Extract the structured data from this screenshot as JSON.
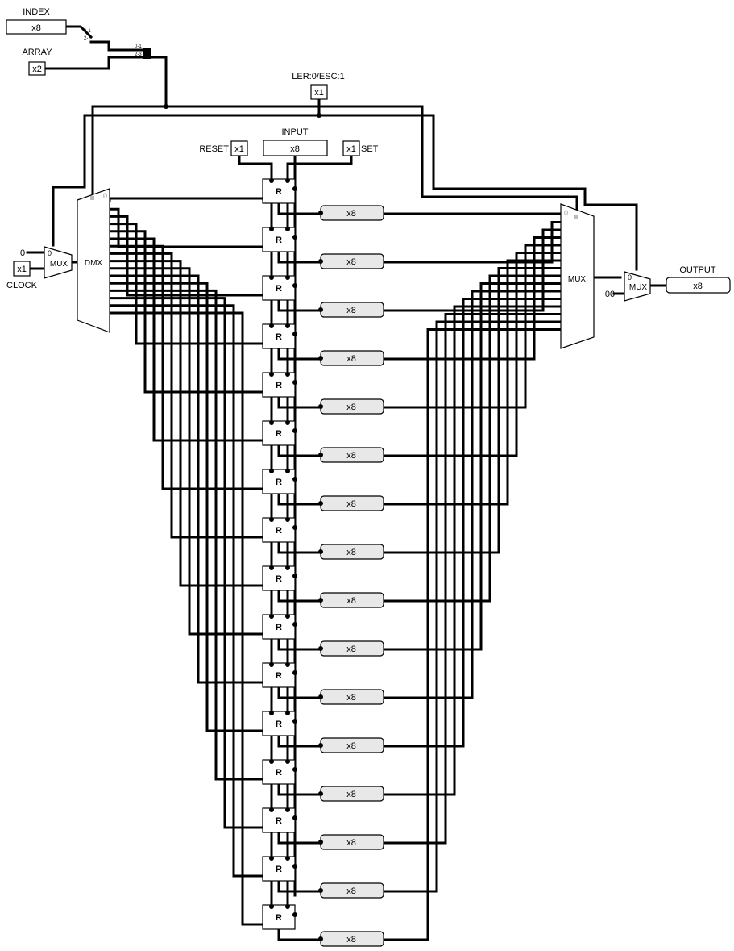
{
  "labels": {
    "index": "INDEX",
    "array": "ARRAY",
    "mode": "LER:0/ESC:1",
    "input": "INPUT",
    "reset": "RESET",
    "set": "SET",
    "clock": "CLOCK",
    "output": "OUTPUT"
  },
  "pins": {
    "index_value": "x8",
    "array_value": "x2",
    "mode_value": "x1",
    "input_value": "x8",
    "reset_value": "x1",
    "set_value": "x1",
    "clock_value": "x1",
    "output_value": "x8",
    "clock_const": "0",
    "out_const": "00"
  },
  "splitters": {
    "index_top": "0-1",
    "index_bottom": "2-7",
    "array_top": "0-1",
    "array_bottom": "2-3"
  },
  "blocks": {
    "mux_small": "MUX",
    "demux": "DMX",
    "mux_big": "MUX",
    "mux_out": "MUX",
    "register": "R",
    "pin0": "0",
    "pin1": "1",
    "register_value": "x8"
  },
  "register_count": 16,
  "colors": {
    "wire": "#000000",
    "stub_fill": "#e8e8e8",
    "pin_marker": "#bbbbbb"
  }
}
